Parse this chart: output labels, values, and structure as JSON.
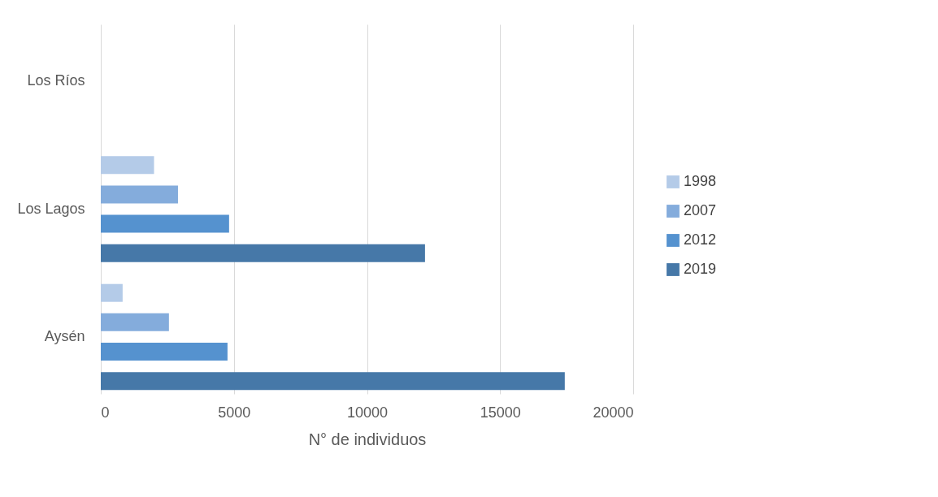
{
  "chart_data": {
    "type": "bar",
    "orientation": "horizontal",
    "xlabel": "N° de individuos",
    "categories": [
      "Los Ríos",
      "Los Lagos",
      "Aysén"
    ],
    "series": [
      {
        "name": "1998",
        "color": "#b4cbe8",
        "values": [
          null,
          2000,
          820
        ]
      },
      {
        "name": "2007",
        "color": "#84acdc",
        "values": [
          null,
          2900,
          2560
        ]
      },
      {
        "name": "2012",
        "color": "#5592cf",
        "values": [
          null,
          4820,
          4760
        ]
      },
      {
        "name": "2019",
        "color": "#4678a8",
        "values": [
          null,
          12180,
          17430
        ]
      }
    ],
    "xlim": [
      0,
      20000
    ],
    "xticks": [
      0,
      5000,
      10000,
      15000,
      20000
    ],
    "grid": "x",
    "legend": "right"
  }
}
